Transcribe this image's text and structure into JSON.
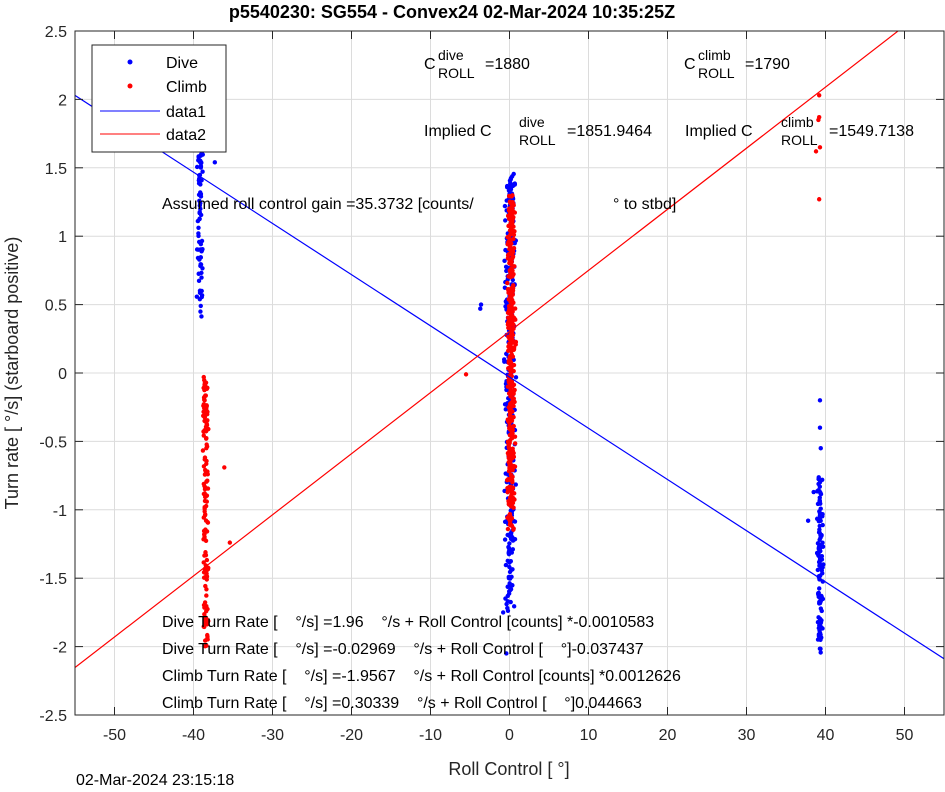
{
  "chart_data": {
    "type": "scatter",
    "title": "p5540230: SG554 - Convex24 02-Mar-2024 10:35:25Z",
    "xlabel": "Roll Control [   °]",
    "ylabel": "Turn rate [   °/s] (starboard positive)",
    "xlim": [
      -55,
      55
    ],
    "ylim": [
      -2.5,
      2.5
    ],
    "xticks": [
      -50,
      -40,
      -30,
      -20,
      -10,
      0,
      10,
      20,
      30,
      40,
      50
    ],
    "yticks": [
      -2.5,
      -2,
      -1.5,
      -1,
      -0.5,
      0,
      0.5,
      1,
      1.5,
      2,
      2.5
    ],
    "grid": true,
    "legend_position": "top-left",
    "legend": [
      "Dive",
      "Climb",
      "data1",
      "data2"
    ],
    "colors": {
      "dive": "#0000ff",
      "climb": "#ff0000"
    },
    "series": [
      {
        "name": "Dive",
        "marker": "dot",
        "color": "#0000ff",
        "clusters": [
          {
            "x_center": -39.2,
            "x_spread": 0.5,
            "y_min": 0.35,
            "y_max": 2.05,
            "count": 90,
            "outliers": [
              [
                -37.3,
                1.54
              ],
              [
                -39.9,
                1.92
              ]
            ]
          },
          {
            "x_center": 0.1,
            "x_spread": 0.9,
            "y_min": -1.75,
            "y_max": 1.47,
            "count": 340,
            "outliers": [
              [
                -3.6,
                0.5
              ],
              [
                -3.7,
                0.47
              ],
              [
                -0.4,
                -2.05
              ],
              [
                -0.8,
                -1.75
              ]
            ]
          },
          {
            "x_center": 39.3,
            "x_spread": 0.5,
            "y_min": -2.05,
            "y_max": -0.75,
            "count": 120,
            "outliers": [
              [
                39.3,
                -0.4
              ],
              [
                39.3,
                -0.2
              ],
              [
                39.4,
                -0.55
              ],
              [
                37.8,
                -1.08
              ],
              [
                38.5,
                -0.87
              ]
            ]
          }
        ]
      },
      {
        "name": "Climb",
        "marker": "dot",
        "color": "#ff0000",
        "clusters": [
          {
            "x_center": -38.5,
            "x_spread": 0.5,
            "y_min": -2.02,
            "y_max": -0.03,
            "count": 150,
            "outliers": [
              [
                -36.1,
                -0.69
              ],
              [
                -35.4,
                -1.24
              ],
              [
                -38.7,
                -0.03
              ]
            ]
          },
          {
            "x_center": 0.2,
            "x_spread": 0.7,
            "y_min": -1.15,
            "y_max": 1.3,
            "count": 380,
            "outliers": [
              [
                -5.5,
                -0.01
              ],
              [
                -0.2,
                -0.1
              ]
            ]
          },
          {
            "x_center": 39.2,
            "x_spread": 0.2,
            "y_min": 1.27,
            "y_max": 2.03,
            "count": 6,
            "points": [
              [
                39.2,
                2.03
              ],
              [
                39.2,
                1.87
              ],
              [
                39.1,
                1.85
              ],
              [
                38.8,
                1.62
              ],
              [
                39.3,
                1.65
              ],
              [
                39.2,
                1.27
              ]
            ]
          }
        ]
      },
      {
        "name": "data1",
        "type": "line",
        "color": "#0000ff",
        "intercept": -0.02969,
        "slope": -0.037437
      },
      {
        "name": "data2",
        "type": "line",
        "color": "#ff0000",
        "intercept": 0.30339,
        "slope": 0.044663
      }
    ],
    "annotations": {
      "c_dive_label": "C",
      "c_dive_sup": "dive",
      "c_dive_sub": "ROLL",
      "c_dive_value": "=1880",
      "c_climb_label": "C",
      "c_climb_sup": "climb",
      "c_climb_sub": "ROLL",
      "c_climb_value": "=1790",
      "implied_dive_label": "Implied C",
      "implied_dive_sup": "dive",
      "implied_dive_sub": "ROLL",
      "implied_dive_value": "=1851.9464",
      "implied_climb_label": "Implied C",
      "implied_climb_sup": "climb",
      "implied_climb_sub": "ROLL",
      "implied_climb_value": "=1549.7138",
      "gain_text_a": "Assumed roll control gain =35.3732 [counts/",
      "gain_text_b": "° to stbd]",
      "fit1": "Dive Turn Rate [    °/s] =1.96    °/s + Roll Control [counts] *-0.0010583",
      "fit2": "Dive Turn Rate [    °/s] =-0.02969    °/s + Roll Control [    °]-0.037437",
      "fit3": "Climb Turn Rate [    °/s] =-1.9567    °/s + Roll Control [counts] *0.0012626",
      "fit4": "Climb Turn Rate [    °/s] =0.30339    °/s + Roll Control [    °]0.044663"
    }
  },
  "timestamp": "02-Mar-2024 23:15:18"
}
